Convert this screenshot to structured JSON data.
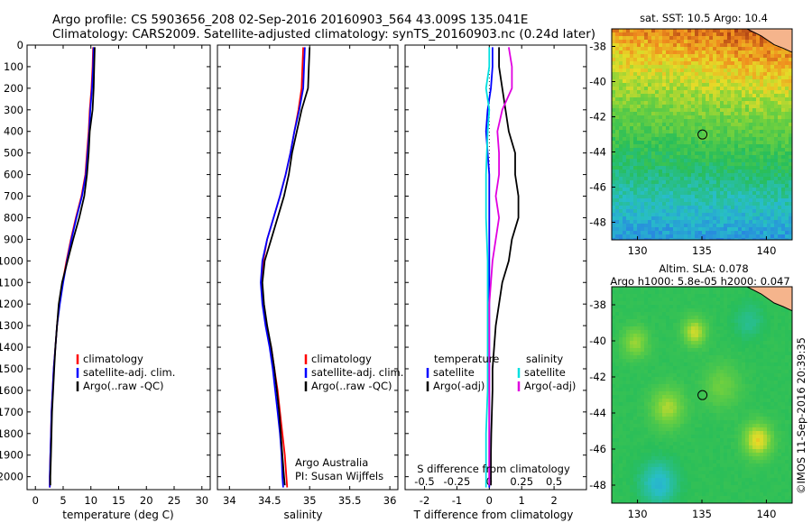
{
  "header": {
    "line1": "Argo profile: CS 5903656_208 02-Sep-2016 20160903_564 43.009S 135.041E",
    "line2": "Climatology: CARS2009. Satellite-adjusted climatology: synTS_20160903.nc (0.24d later)"
  },
  "credits": {
    "center": "Argo Australia",
    "pi": "PI: Susan Wijffels",
    "stamp": "©IMOS 11-Sep-2016 20:39:35"
  },
  "colors": {
    "climatology": "#ff0000",
    "satellite": "#0000ff",
    "argo": "#000000",
    "sal_satellite": "#00e0e0",
    "sal_argo": "#e000e0",
    "land": "#f5b48c"
  },
  "chart_data": [
    {
      "type": "line",
      "id": "temperature",
      "xlabel": "temperature (deg C)",
      "xlim": [
        -1.5,
        31.5
      ],
      "xticks": [
        0,
        5,
        10,
        15,
        20,
        25,
        30
      ],
      "ylim": [
        2060,
        0
      ],
      "yticks": [
        0,
        100,
        200,
        300,
        400,
        500,
        600,
        700,
        800,
        900,
        1000,
        1100,
        1200,
        1300,
        1400,
        1500,
        1600,
        1700,
        1800,
        1900,
        2000
      ],
      "legend": [
        "climatology",
        "satellite-adj. clim.",
        "Argo(..raw -QC)"
      ],
      "series": [
        {
          "name": "climatology",
          "color": "#ff0000",
          "points": [
            [
              10.4,
              10
            ],
            [
              10.3,
              100
            ],
            [
              10.1,
              200
            ],
            [
              9.8,
              300
            ],
            [
              9.6,
              400
            ],
            [
              9.3,
              500
            ],
            [
              9.0,
              600
            ],
            [
              8.3,
              700
            ],
            [
              7.3,
              800
            ],
            [
              6.4,
              900
            ],
            [
              5.6,
              1000
            ],
            [
              4.9,
              1100
            ],
            [
              4.3,
              1200
            ],
            [
              3.9,
              1300
            ],
            [
              3.6,
              1400
            ],
            [
              3.3,
              1500
            ],
            [
              3.1,
              1600
            ],
            [
              2.9,
              1700
            ],
            [
              2.8,
              1800
            ],
            [
              2.7,
              1900
            ],
            [
              2.6,
              2000
            ],
            [
              2.6,
              2050
            ]
          ]
        },
        {
          "name": "satellite-adj. clim.",
          "color": "#0000ff",
          "points": [
            [
              10.5,
              10
            ],
            [
              10.4,
              100
            ],
            [
              10.2,
              200
            ],
            [
              9.9,
              300
            ],
            [
              9.7,
              400
            ],
            [
              9.4,
              500
            ],
            [
              9.1,
              600
            ],
            [
              8.4,
              700
            ],
            [
              7.4,
              800
            ],
            [
              6.5,
              900
            ],
            [
              5.7,
              1000
            ],
            [
              5.0,
              1100
            ],
            [
              4.4,
              1200
            ],
            [
              3.9,
              1300
            ],
            [
              3.6,
              1400
            ],
            [
              3.3,
              1500
            ],
            [
              3.1,
              1600
            ],
            [
              2.9,
              1700
            ],
            [
              2.8,
              1800
            ],
            [
              2.7,
              1900
            ],
            [
              2.6,
              2000
            ],
            [
              2.6,
              2050
            ]
          ]
        },
        {
          "name": "Argo(..raw -QC)",
          "color": "#000000",
          "points": [
            [
              10.7,
              10
            ],
            [
              10.6,
              100
            ],
            [
              10.5,
              200
            ],
            [
              10.3,
              300
            ],
            [
              9.8,
              400
            ],
            [
              9.6,
              500
            ],
            [
              9.3,
              600
            ],
            [
              8.8,
              700
            ],
            [
              7.9,
              800
            ],
            [
              6.8,
              900
            ],
            [
              5.8,
              1000
            ],
            [
              4.8,
              1100
            ],
            [
              4.2,
              1200
            ],
            [
              3.9,
              1300
            ],
            [
              3.6,
              1400
            ],
            [
              3.4,
              1500
            ],
            [
              3.2,
              1600
            ],
            [
              3.0,
              1700
            ],
            [
              2.9,
              1800
            ],
            [
              2.8,
              1900
            ],
            [
              2.7,
              2000
            ],
            [
              2.7,
              2040
            ]
          ]
        }
      ]
    },
    {
      "type": "line",
      "id": "salinity",
      "xlabel": "salinity",
      "xlim": [
        33.85,
        36.1
      ],
      "xticks": [
        34,
        34.5,
        35,
        35.5,
        36
      ],
      "xticklabels": [
        "34",
        "34.5",
        "35",
        "35.5",
        "36"
      ],
      "ylim": [
        2060,
        0
      ],
      "legend": [
        "climatology",
        "satellite-adj. clim.",
        "Argo(..raw -QC)"
      ],
      "series": [
        {
          "name": "climatology",
          "color": "#ff0000",
          "points": [
            [
              34.92,
              10
            ],
            [
              34.91,
              100
            ],
            [
              34.9,
              200
            ],
            [
              34.86,
              300
            ],
            [
              34.81,
              400
            ],
            [
              34.76,
              500
            ],
            [
              34.7,
              600
            ],
            [
              34.63,
              700
            ],
            [
              34.55,
              800
            ],
            [
              34.47,
              900
            ],
            [
              34.42,
              1000
            ],
            [
              34.4,
              1100
            ],
            [
              34.42,
              1200
            ],
            [
              34.46,
              1300
            ],
            [
              34.52,
              1400
            ],
            [
              34.56,
              1500
            ],
            [
              34.6,
              1600
            ],
            [
              34.63,
              1700
            ],
            [
              34.66,
              1800
            ],
            [
              34.69,
              1900
            ],
            [
              34.71,
              2000
            ],
            [
              34.72,
              2050
            ]
          ]
        },
        {
          "name": "satellite-adj. clim.",
          "color": "#0000ff",
          "points": [
            [
              34.94,
              10
            ],
            [
              34.93,
              100
            ],
            [
              34.92,
              200
            ],
            [
              34.87,
              300
            ],
            [
              34.81,
              400
            ],
            [
              34.76,
              500
            ],
            [
              34.7,
              600
            ],
            [
              34.63,
              700
            ],
            [
              34.55,
              800
            ],
            [
              34.47,
              900
            ],
            [
              34.41,
              1000
            ],
            [
              34.39,
              1100
            ],
            [
              34.41,
              1200
            ],
            [
              34.45,
              1300
            ],
            [
              34.5,
              1400
            ],
            [
              34.54,
              1500
            ],
            [
              34.57,
              1600
            ],
            [
              34.6,
              1700
            ],
            [
              34.63,
              1800
            ],
            [
              34.65,
              1900
            ],
            [
              34.66,
              2000
            ],
            [
              34.67,
              2050
            ]
          ]
        },
        {
          "name": "Argo(..raw -QC)",
          "color": "#000000",
          "points": [
            [
              35.0,
              10
            ],
            [
              34.99,
              100
            ],
            [
              34.98,
              200
            ],
            [
              34.9,
              300
            ],
            [
              34.84,
              400
            ],
            [
              34.78,
              500
            ],
            [
              34.74,
              600
            ],
            [
              34.68,
              700
            ],
            [
              34.6,
              800
            ],
            [
              34.52,
              900
            ],
            [
              34.44,
              1000
            ],
            [
              34.41,
              1100
            ],
            [
              34.43,
              1200
            ],
            [
              34.47,
              1300
            ],
            [
              34.52,
              1400
            ],
            [
              34.56,
              1500
            ],
            [
              34.59,
              1600
            ],
            [
              34.62,
              1700
            ],
            [
              34.64,
              1800
            ],
            [
              34.66,
              1900
            ],
            [
              34.68,
              2000
            ],
            [
              34.69,
              2040
            ]
          ]
        }
      ]
    },
    {
      "type": "line",
      "id": "difference",
      "xlabel": "T difference from climatology",
      "xlim": [
        -2.6,
        3.0
      ],
      "xticks": [
        -2,
        -1,
        0,
        1,
        2
      ],
      "xticklabels_top": [
        "-0.5",
        "-0.25",
        "0",
        "0.25",
        "0.5"
      ],
      "top_axis_label": "S difference from climatology",
      "ylim": [
        2060,
        0
      ],
      "legend": {
        "temperature_title": "temperature",
        "salinity_title": "salinity",
        "entries": [
          "satellite",
          "Argo(-adj)",
          "satellite",
          "Argo(-adj)"
        ]
      },
      "series": [
        {
          "name": "satellite",
          "color": "#0000ff",
          "points": [
            [
              0.1,
              10
            ],
            [
              0.1,
              100
            ],
            [
              0.05,
              200
            ],
            [
              -0.05,
              300
            ],
            [
              -0.1,
              400
            ],
            [
              0.0,
              600
            ],
            [
              0.0,
              800
            ],
            [
              0.0,
              1000
            ],
            [
              0.0,
              1200
            ],
            [
              0.0,
              1400
            ],
            [
              0.0,
              1600
            ],
            [
              0.0,
              1800
            ],
            [
              0.0,
              2000
            ],
            [
              0.0,
              2050
            ]
          ]
        },
        {
          "name": "Argo(-adj)",
          "color": "#000000",
          "points": [
            [
              0.3,
              10
            ],
            [
              0.3,
              100
            ],
            [
              0.4,
              200
            ],
            [
              0.5,
              300
            ],
            [
              0.6,
              400
            ],
            [
              0.8,
              500
            ],
            [
              0.8,
              600
            ],
            [
              0.9,
              700
            ],
            [
              0.9,
              800
            ],
            [
              0.7,
              900
            ],
            [
              0.6,
              1000
            ],
            [
              0.4,
              1100
            ],
            [
              0.3,
              1200
            ],
            [
              0.2,
              1300
            ],
            [
              0.15,
              1400
            ],
            [
              0.1,
              1500
            ],
            [
              0.1,
              1600
            ],
            [
              0.08,
              1700
            ],
            [
              0.06,
              1800
            ],
            [
              0.05,
              1900
            ],
            [
              0.05,
              2000
            ],
            [
              0.05,
              2040
            ]
          ]
        },
        {
          "name": "satellite",
          "color": "#00e0e0",
          "points": [
            [
              0.0,
              10
            ],
            [
              0.0,
              100
            ],
            [
              -0.1,
              200
            ],
            [
              0.0,
              300
            ],
            [
              -0.05,
              400
            ],
            [
              -0.1,
              600
            ],
            [
              -0.1,
              800
            ],
            [
              -0.05,
              1000
            ],
            [
              -0.05,
              1200
            ],
            [
              -0.05,
              1400
            ],
            [
              -0.05,
              1600
            ],
            [
              -0.1,
              1800
            ],
            [
              -0.1,
              2000
            ],
            [
              -0.1,
              2050
            ]
          ]
        },
        {
          "name": "Argo(-adj)",
          "color": "#e000e0",
          "points": [
            [
              0.6,
              10
            ],
            [
              0.7,
              100
            ],
            [
              0.7,
              200
            ],
            [
              0.4,
              300
            ],
            [
              0.25,
              400
            ],
            [
              0.3,
              500
            ],
            [
              0.3,
              600
            ],
            [
              0.2,
              700
            ],
            [
              0.3,
              800
            ],
            [
              0.2,
              900
            ],
            [
              0.1,
              1000
            ],
            [
              0.05,
              1100
            ],
            [
              0.0,
              1200
            ],
            [
              0.0,
              1400
            ],
            [
              0.0,
              1600
            ],
            [
              0.0,
              1800
            ],
            [
              0.0,
              2000
            ],
            [
              0.0,
              2040
            ]
          ]
        }
      ]
    },
    {
      "type": "heatmap",
      "id": "sst_map",
      "title": "sat. SST: 10.5 Argo: 10.4",
      "xlim": [
        128,
        142
      ],
      "ylim": [
        -49,
        -37
      ],
      "xticks": [
        130,
        135,
        140
      ],
      "yticks": [
        -38,
        -40,
        -42,
        -44,
        -46,
        -48
      ],
      "marker": [
        135.041,
        -43.009
      ]
    },
    {
      "type": "heatmap",
      "id": "sla_map",
      "title": "Altim. SLA: 0.078",
      "subtitle": "Argo h1000: 5.8e-05 h2000: 0.047",
      "xlim": [
        128,
        142
      ],
      "ylim": [
        -49,
        -37
      ],
      "xticks": [
        130,
        135,
        140
      ],
      "yticks": [
        -38,
        -40,
        -42,
        -44,
        -46,
        -48
      ],
      "marker": [
        135.041,
        -43.009
      ]
    }
  ]
}
